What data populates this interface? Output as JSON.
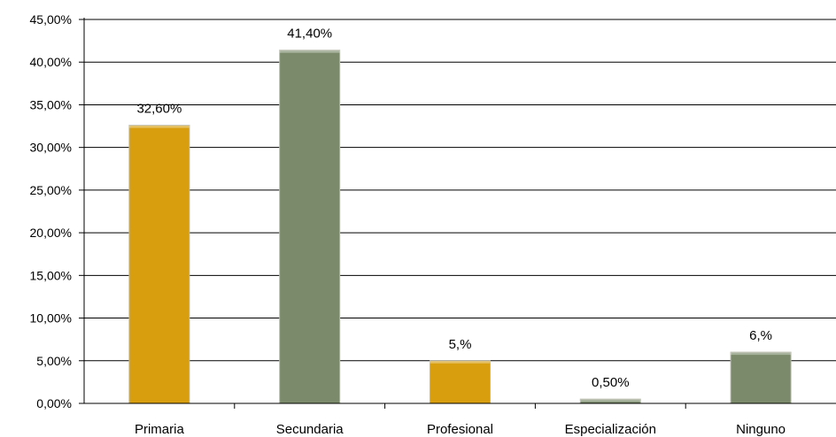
{
  "chart_data": {
    "type": "bar",
    "categories": [
      "Primaria",
      "Secundaria",
      "Profesional",
      "Especialización",
      "Ninguno"
    ],
    "values": [
      32.6,
      41.4,
      5.0,
      0.5,
      6.0
    ],
    "data_labels": [
      "32,60%",
      "41,40%",
      "5,%",
      "0,50%",
      "6,%"
    ],
    "bar_colors": [
      "#D89E0E",
      "#7A8A6A",
      "#D89E0E",
      "#7A8A6A",
      "#7A8A6A"
    ],
    "ylim": [
      0,
      45
    ],
    "yticks": [
      0,
      5,
      10,
      15,
      20,
      25,
      30,
      35,
      40,
      45
    ],
    "ytick_labels": [
      "0,00%",
      "5,00%",
      "10,00%",
      "15,00%",
      "20,00%",
      "25,00%",
      "30,00%",
      "35,00%",
      "40,00%",
      "45,00%"
    ],
    "grid": true,
    "legend": "none",
    "title": "",
    "xlabel": "",
    "ylabel": ""
  }
}
